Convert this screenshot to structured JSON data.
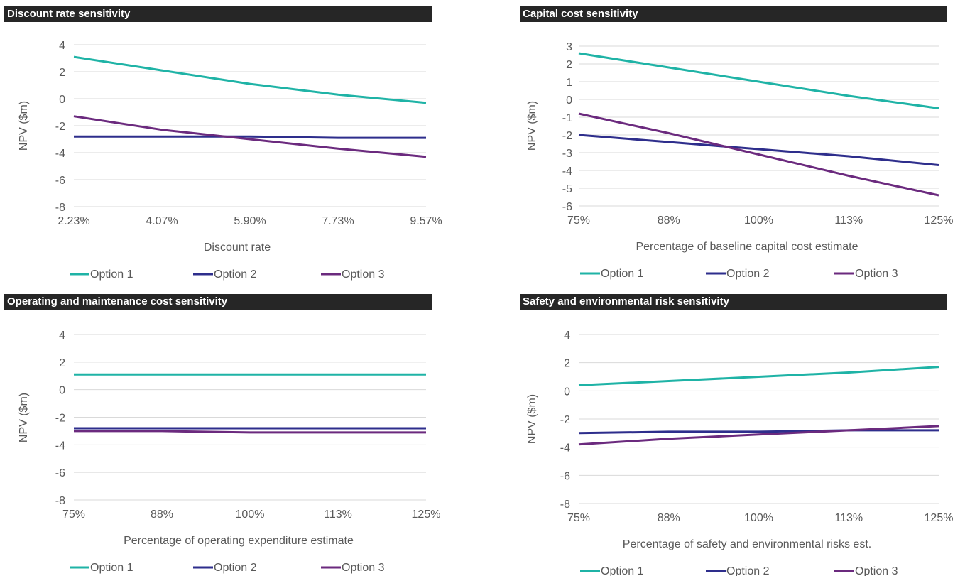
{
  "legend": {
    "colors": [
      "#1fb3a6",
      "#2e2e8c",
      "#6b2a7e"
    ]
  },
  "chart_data": [
    {
      "type": "line",
      "title": "Discount rate sensitivity",
      "xlabel": "Discount rate",
      "ylabel": "NPV ($m)",
      "categories": [
        "2.23%",
        "4.07%",
        "5.90%",
        "7.73%",
        "9.57%"
      ],
      "yticks": [
        "4",
        "2",
        "0",
        "-2",
        "-4",
        "-6",
        "-8"
      ],
      "ylim": [
        -8,
        4
      ],
      "grid": true,
      "legend_position": "bottom",
      "series": [
        {
          "name": "Option 1",
          "values": [
            3.1,
            2.1,
            1.1,
            0.3,
            -0.3
          ]
        },
        {
          "name": "Option 2",
          "values": [
            -2.8,
            -2.8,
            -2.8,
            -2.9,
            -2.9
          ]
        },
        {
          "name": "Option 3",
          "values": [
            -1.3,
            -2.3,
            -3.0,
            -3.7,
            -4.3
          ]
        }
      ]
    },
    {
      "type": "line",
      "title": "Capital cost sensitivity",
      "xlabel": "Percentage of baseline capital cost estimate",
      "ylabel": "NPV ($m)",
      "categories": [
        "75%",
        "88%",
        "100%",
        "113%",
        "125%"
      ],
      "yticks": [
        "3",
        "2",
        "1",
        "0",
        "-1",
        "-2",
        "-3",
        "-4",
        "-5",
        "-6"
      ],
      "ylim": [
        -6,
        3
      ],
      "grid": true,
      "legend_position": "bottom",
      "series": [
        {
          "name": "Option 1",
          "values": [
            2.6,
            1.8,
            1.0,
            0.2,
            -0.5
          ]
        },
        {
          "name": "Option 2",
          "values": [
            -2.0,
            -2.4,
            -2.8,
            -3.2,
            -3.7
          ]
        },
        {
          "name": "Option 3",
          "values": [
            -0.8,
            -1.9,
            -3.1,
            -4.3,
            -5.4
          ]
        }
      ]
    },
    {
      "type": "line",
      "title": "Operating and maintenance cost sensitivity",
      "xlabel": "Percentage of operating expenditure estimate",
      "ylabel": "NPV ($m)",
      "categories": [
        "75%",
        "88%",
        "100%",
        "113%",
        "125%"
      ],
      "yticks": [
        "4",
        "2",
        "0",
        "-2",
        "-4",
        "-6",
        "-8"
      ],
      "ylim": [
        -8,
        4
      ],
      "grid": true,
      "legend_position": "bottom",
      "series": [
        {
          "name": "Option 1",
          "values": [
            1.1,
            1.1,
            1.1,
            1.1,
            1.1
          ]
        },
        {
          "name": "Option 2",
          "values": [
            -2.8,
            -2.8,
            -2.8,
            -2.8,
            -2.8
          ]
        },
        {
          "name": "Option 3",
          "values": [
            -3.0,
            -3.0,
            -3.1,
            -3.1,
            -3.1
          ]
        }
      ]
    },
    {
      "type": "line",
      "title": "Safety and environmental risk sensitivity",
      "xlabel": "Percentage of safety and environmental risks est.",
      "ylabel": "NPV ($m)",
      "categories": [
        "75%",
        "88%",
        "100%",
        "113%",
        "125%"
      ],
      "yticks": [
        "4",
        "2",
        "0",
        "-2",
        "-4",
        "-6",
        "-8"
      ],
      "ylim": [
        -8,
        4
      ],
      "grid": true,
      "legend_position": "bottom",
      "series": [
        {
          "name": "Option 1",
          "values": [
            0.4,
            0.7,
            1.0,
            1.3,
            1.7
          ]
        },
        {
          "name": "Option 2",
          "values": [
            -3.0,
            -2.9,
            -2.9,
            -2.8,
            -2.8
          ]
        },
        {
          "name": "Option 3",
          "values": [
            -3.8,
            -3.4,
            -3.1,
            -2.8,
            -2.5
          ]
        }
      ]
    }
  ]
}
